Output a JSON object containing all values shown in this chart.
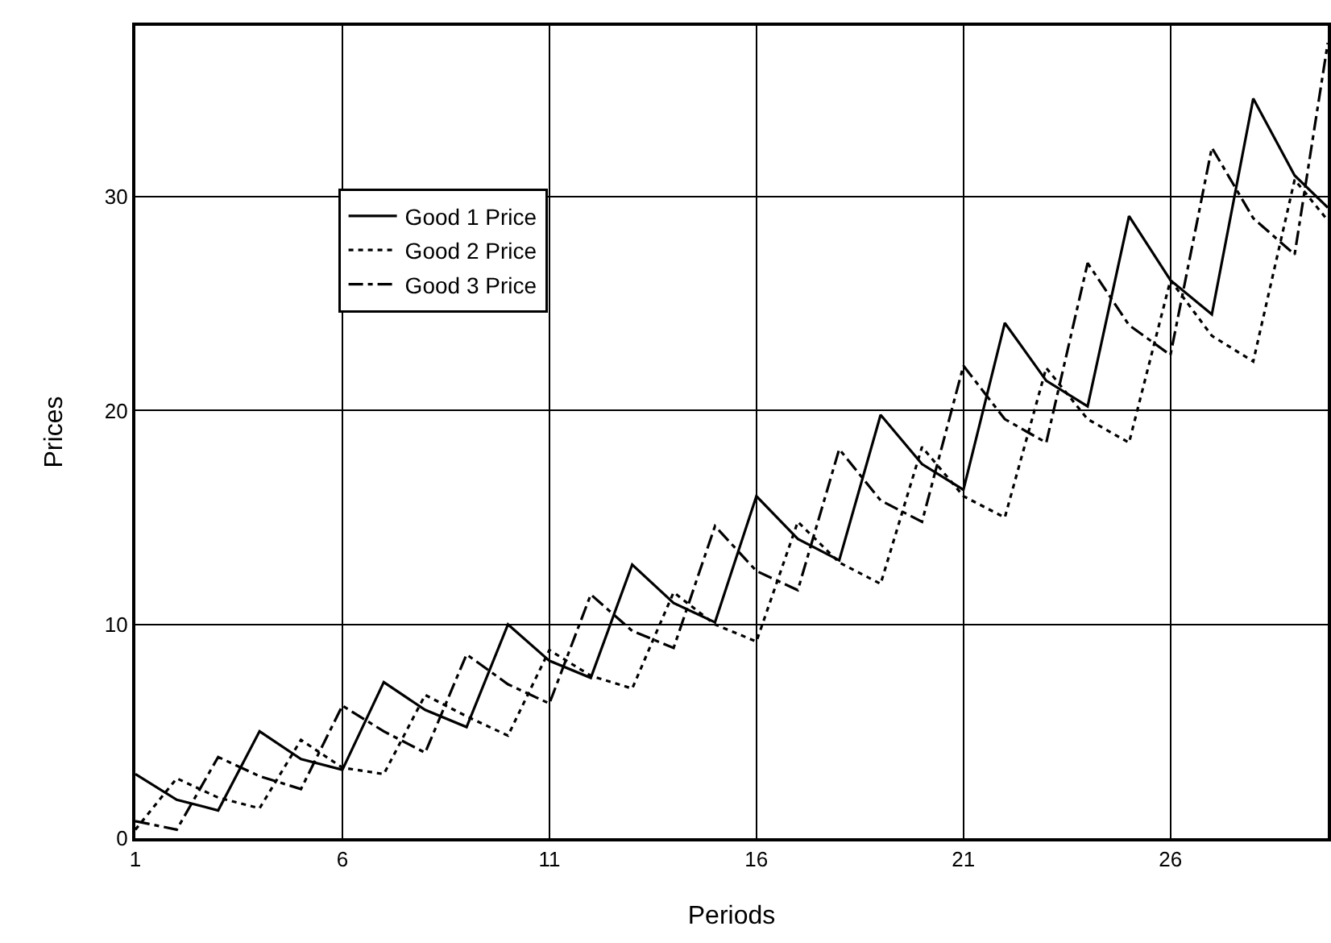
{
  "chart_data": {
    "type": "line",
    "xlabel": "Periods",
    "ylabel": "Prices",
    "x": [
      1,
      2,
      3,
      4,
      5,
      6,
      7,
      8,
      9,
      10,
      11,
      12,
      13,
      14,
      15,
      16,
      17,
      18,
      19,
      20,
      21,
      22,
      23,
      24,
      25,
      26,
      27,
      28,
      29,
      29.8
    ],
    "series": [
      {
        "name": "Good 1 Price",
        "color": "#000000",
        "line_style": "solid",
        "values": [
          3.0,
          1.8,
          1.3,
          5.0,
          3.7,
          3.2,
          7.3,
          6.0,
          5.2,
          10.0,
          8.3,
          7.5,
          12.8,
          11.0,
          10.1,
          16.0,
          14.0,
          13.0,
          19.8,
          17.5,
          16.3,
          24.1,
          21.4,
          20.2,
          29.1,
          26.1,
          24.5,
          34.6,
          31.0,
          29.5
        ]
      },
      {
        "name": "Good 2 Price",
        "color": "#000000",
        "line_style": "dotted",
        "values": [
          0.4,
          2.8,
          1.9,
          1.4,
          4.6,
          3.3,
          3.0,
          6.7,
          5.7,
          4.8,
          8.8,
          7.6,
          7.0,
          11.5,
          10.0,
          9.2,
          14.8,
          12.9,
          11.9,
          18.3,
          16.0,
          15.0,
          22.0,
          19.6,
          18.5,
          26.1,
          23.5,
          22.3,
          30.8,
          28.9
        ]
      },
      {
        "name": "Good 3 Price",
        "color": "#000000",
        "line_style": "dashdot",
        "values": [
          0.8,
          0.4,
          3.8,
          2.9,
          2.3,
          6.2,
          5.0,
          4.0,
          8.6,
          7.2,
          6.3,
          11.4,
          9.7,
          8.9,
          14.6,
          12.5,
          11.6,
          18.2,
          15.8,
          14.8,
          22.1,
          19.6,
          18.5,
          26.9,
          24.0,
          22.6,
          32.3,
          29.0,
          27.3,
          37.2
        ]
      }
    ],
    "xlim": [
      1,
      29.8
    ],
    "xticks": [
      1,
      6,
      11,
      16,
      21,
      26
    ],
    "ylim": [
      0,
      38
    ],
    "yticks": [
      0,
      10,
      20,
      30
    ],
    "grid": true,
    "legend": "top left",
    "marker": "none"
  }
}
